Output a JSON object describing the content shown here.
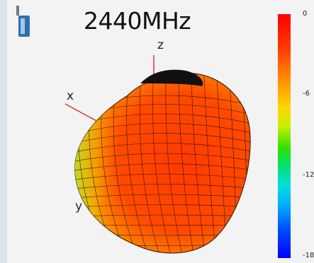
{
  "title": "2440MHz",
  "axes": {
    "x": "x",
    "y": "y",
    "z": "z"
  },
  "colorbar": {
    "ticks": [
      "0",
      "-6",
      "-12",
      "-18"
    ]
  },
  "colors": {
    "high": "#ff2a00",
    "mid": "#ffd400",
    "low": "#0000ff"
  },
  "icons": {
    "antenna": "antenna-icon"
  }
}
